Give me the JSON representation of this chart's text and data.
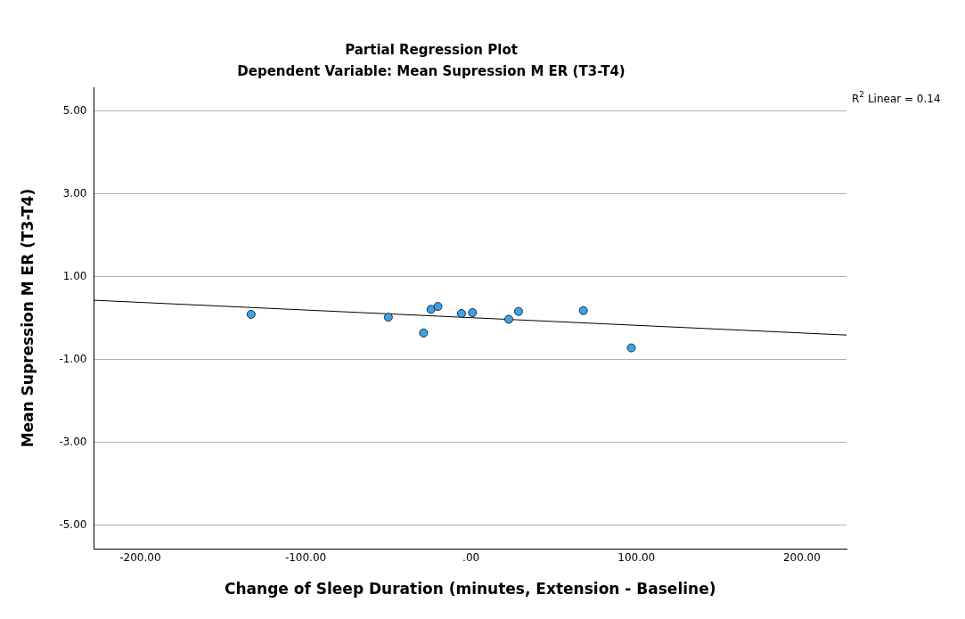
{
  "chart_data": {
    "type": "scatter",
    "title": "Partial Regression Plot",
    "subtitle": "Dependent Variable: Mean Supression M ER (T3-T4)",
    "xlabel": "Change of Sleep Duration (minutes, Extension - Baseline)",
    "ylabel": "Mean Supression M ER (T3-T4)",
    "xlim": [
      -228,
      227
    ],
    "ylim": [
      -5.57,
      5.57
    ],
    "xticks": [
      {
        "value": -200,
        "label": "-200.00"
      },
      {
        "value": -100,
        "label": "-100.00"
      },
      {
        "value": 0,
        "label": ".00"
      },
      {
        "value": 100,
        "label": "100.00"
      },
      {
        "value": 200,
        "label": "200.00"
      }
    ],
    "yticks": [
      {
        "value": -5,
        "label": "-5.00"
      },
      {
        "value": -3,
        "label": "-3.00"
      },
      {
        "value": -1,
        "label": "-1.00"
      },
      {
        "value": 1,
        "label": "1.00"
      },
      {
        "value": 3,
        "label": "3.00"
      },
      {
        "value": 5,
        "label": "5.00"
      }
    ],
    "grid": "y",
    "marker": "circle",
    "annotations": [
      "R$^{2}$ Linear = 0.14"
    ],
    "series": [
      {
        "color": "#3aa3ea",
        "x": [
          -133,
          -50,
          -28.7,
          -24.2,
          -20,
          -5.8,
          0.9,
          22.8,
          28.7,
          67.9,
          96.9
        ],
        "values": [
          0.09,
          0.02,
          -0.36,
          0.21,
          0.28,
          0.11,
          0.13,
          -0.03,
          0.16,
          0.18,
          -0.72
        ]
      },
      {
        "type": "line",
        "marker": "none",
        "color": "#000000",
        "x": [
          -228,
          227
        ],
        "values": [
          0.43,
          -0.41
        ]
      }
    ]
  }
}
